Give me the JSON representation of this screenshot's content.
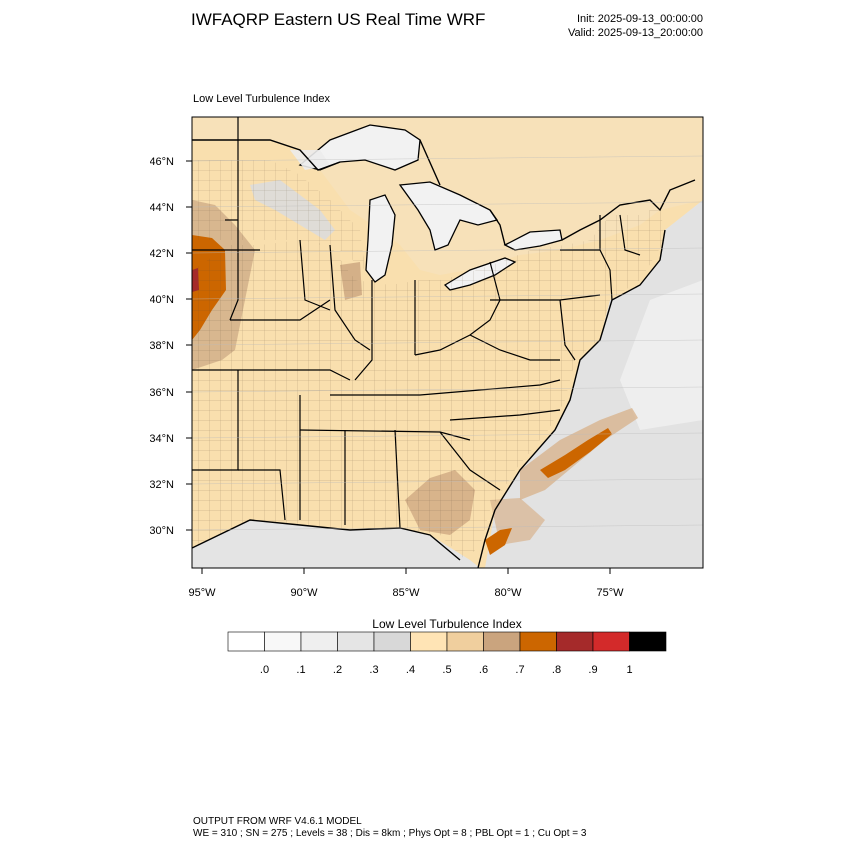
{
  "header": {
    "title": "IWFAQRP Eastern US Real Time WRF",
    "init": "Init: 2025-09-13_00:00:00",
    "valid": "Valid: 2025-09-13_20:00:00"
  },
  "map": {
    "subtitle": "Low Level Turbulence Index",
    "lat_labels": [
      "46°N",
      "44°N",
      "42°N",
      "40°N",
      "38°N",
      "36°N",
      "34°N",
      "32°N",
      "30°N"
    ],
    "lon_labels": [
      "95°W",
      "90°W",
      "85°W",
      "80°W",
      "75°W"
    ],
    "colors": {
      "land": "#f9dfae",
      "water": "#f3f3f3",
      "canada": "#f7e1b9",
      "ocean_gray": "#dcdcdc",
      "tan": "#d2b08a",
      "orange": "#cc6600",
      "brown_red": "#a52a2a",
      "red": "#cc2a2a"
    }
  },
  "colorbar": {
    "title": "Low Level Turbulence Index",
    "labels": [
      ".0",
      ".1",
      ".2",
      ".3",
      ".4",
      ".5",
      ".6",
      ".7",
      ".8",
      ".9",
      "1"
    ],
    "colors": [
      "#ffffff",
      "#f8f8f8",
      "#efefef",
      "#e5e5e5",
      "#d8d8d8",
      "#ffe4b5",
      "#f0cf9e",
      "#caa47e",
      "#cc6600",
      "#a52a2a",
      "#d32a2a",
      "#000000"
    ]
  },
  "footer": {
    "line1": "OUTPUT FROM WRF V4.6.1 MODEL",
    "line2": "WE = 310 ; SN = 275 ; Levels = 38 ; Dis = 8km ; Phys Opt = 8 ; PBL Opt = 1 ; Cu Opt = 3"
  }
}
